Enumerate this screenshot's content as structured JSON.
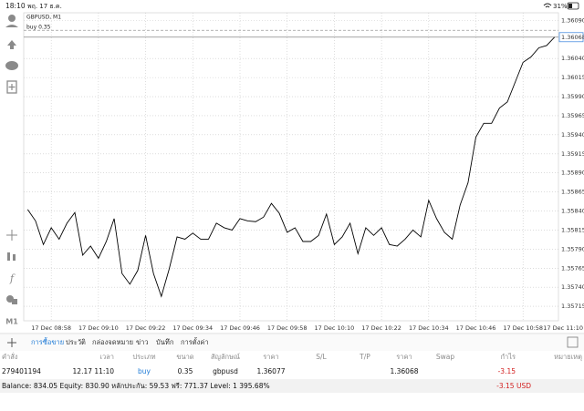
{
  "status_bar": {
    "time": "18:10",
    "date": "พฤ. 17 ธ.ค.",
    "battery": "31%"
  },
  "toolbar": {
    "timeframe": "M1"
  },
  "chart_data": {
    "type": "line",
    "title": "GBPUSD, M1",
    "color": "#000000",
    "x": [
      "17 Dec 08:52",
      "17 Dec 08:54",
      "17 Dec 08:56",
      "17 Dec 08:58",
      "17 Dec 09:00",
      "17 Dec 09:02",
      "17 Dec 09:04",
      "17 Dec 09:06",
      "17 Dec 09:08",
      "17 Dec 09:10",
      "17 Dec 09:12",
      "17 Dec 09:14",
      "17 Dec 09:16",
      "17 Dec 09:18",
      "17 Dec 09:20",
      "17 Dec 09:22",
      "17 Dec 09:24",
      "17 Dec 09:26",
      "17 Dec 09:28",
      "17 Dec 09:30",
      "17 Dec 09:32",
      "17 Dec 09:34",
      "17 Dec 09:36",
      "17 Dec 09:38",
      "17 Dec 09:40",
      "17 Dec 09:42",
      "17 Dec 09:44",
      "17 Dec 09:46",
      "17 Dec 09:48",
      "17 Dec 09:50",
      "17 Dec 09:52",
      "17 Dec 09:54",
      "17 Dec 09:56",
      "17 Dec 09:58",
      "17 Dec 10:00",
      "17 Dec 10:02",
      "17 Dec 10:04",
      "17 Dec 10:06",
      "17 Dec 10:08",
      "17 Dec 10:10",
      "17 Dec 10:12",
      "17 Dec 10:14",
      "17 Dec 10:16",
      "17 Dec 10:18",
      "17 Dec 10:20",
      "17 Dec 10:22",
      "17 Dec 10:24",
      "17 Dec 10:26",
      "17 Dec 10:28",
      "17 Dec 10:30",
      "17 Dec 10:32",
      "17 Dec 10:34",
      "17 Dec 10:36",
      "17 Dec 10:38",
      "17 Dec 10:40",
      "17 Dec 10:42",
      "17 Dec 10:44",
      "17 Dec 10:46",
      "17 Dec 10:48",
      "17 Dec 10:50",
      "17 Dec 10:52",
      "17 Dec 10:54",
      "17 Dec 10:56",
      "17 Dec 10:58",
      "17 Dec 11:00",
      "17 Dec 11:02",
      "17 Dec 11:04",
      "17 Dec 11:06"
    ],
    "values": [
      1.35842,
      1.35827,
      1.35796,
      1.35818,
      1.35803,
      1.35824,
      1.35838,
      1.35782,
      1.35794,
      1.35778,
      1.358,
      1.3583,
      1.35758,
      1.35744,
      1.35762,
      1.35808,
      1.35758,
      1.35728,
      1.35764,
      1.35806,
      1.35803,
      1.35811,
      1.35803,
      1.35803,
      1.35824,
      1.35818,
      1.35815,
      1.3583,
      1.35827,
      1.35826,
      1.35832,
      1.3585,
      1.35837,
      1.35812,
      1.35818,
      1.358,
      1.358,
      1.35808,
      1.35836,
      1.35796,
      1.35806,
      1.35824,
      1.35784,
      1.35818,
      1.35808,
      1.35818,
      1.35796,
      1.35794,
      1.35803,
      1.35815,
      1.35806,
      1.35854,
      1.3583,
      1.35812,
      1.35803,
      1.35848,
      1.35877,
      1.35937,
      1.35955,
      1.35955,
      1.35975,
      1.35983,
      1.36009,
      1.36035,
      1.36042,
      1.36054,
      1.36057,
      1.36068
    ],
    "xlim": [
      "17 Dec 08:51",
      "17 Dec 11:07"
    ],
    "xticks": [
      "17 Dec 08:58",
      "17 Dec 09:10",
      "17 Dec 09:22",
      "17 Dec 09:34",
      "17 Dec 09:46",
      "17 Dec 09:58",
      "17 Dec 10:10",
      "17 Dec 10:22",
      "17 Dec 10:34",
      "17 Dec 10:46",
      "17 Dec 10:58",
      "17 Dec 11:10"
    ],
    "ylim": [
      1.35696,
      1.361
    ],
    "yticks": [
      {
        "value": 1.3609,
        "label": "1.36090"
      },
      {
        "value": 1.3604,
        "label": "1.36040"
      },
      1.36015,
      {
        "value": 1.3599,
        "label": "1.35990"
      },
      1.35965,
      {
        "value": 1.3594,
        "label": "1.35940"
      },
      1.35915,
      {
        "value": 1.3589,
        "label": "1.35890"
      },
      1.35865,
      {
        "value": 1.3584,
        "label": "1.35840"
      },
      1.35815,
      {
        "value": 1.3579,
        "label": "1.35790"
      },
      1.35765,
      {
        "value": 1.3574,
        "label": "1.35740"
      },
      1.35715
    ],
    "grid": true,
    "order_line": {
      "label": "buy 0.35",
      "value": 1.36077
    },
    "last_price": 1.36068
  },
  "tabs": [
    "การซื้อขาย",
    "ประวัติ",
    "กล่องจดหมาย",
    "ข่าว",
    "บันทึก",
    "การตั้งค่า"
  ],
  "table": {
    "headers": [
      "คำสั่ง",
      "เวลา",
      "ประเภท",
      "ขนาด",
      "สัญลักษณ์",
      "ราคา",
      "S/L",
      "T/P",
      "ราคา",
      "Swap",
      "กำไร",
      "หมายเหตุ"
    ],
    "rows": [
      [
        "279401194",
        "12.17 11:10",
        "buy",
        "0.35",
        "gbpusd",
        "1.36077",
        null,
        null,
        "1.36068",
        null,
        "-3.15",
        null
      ]
    ]
  },
  "footer": {
    "summary": "Balance: 834.05 Equity: 830.90 หลักประกัน: 59.53 ฟรี: 771.37 Level: 1 395.68%",
    "profit": "-3.15 USD"
  }
}
